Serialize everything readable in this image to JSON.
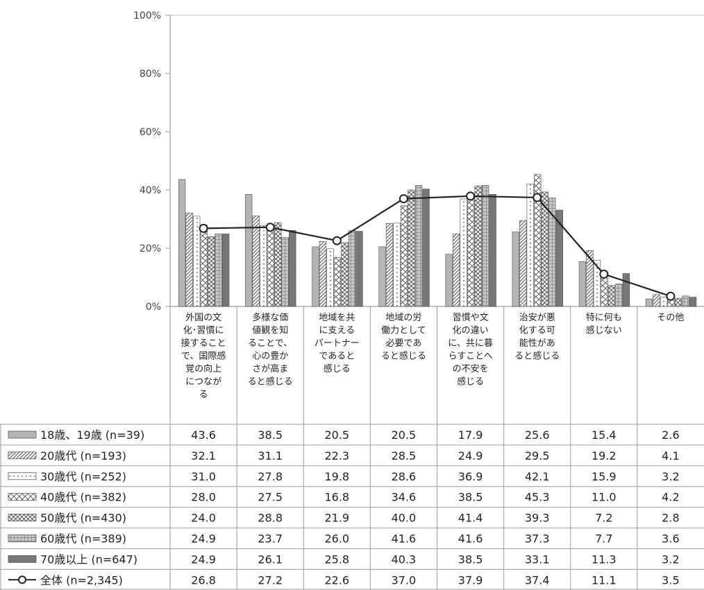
{
  "chart_data": {
    "type": "bar",
    "ylim": [
      0,
      100
    ],
    "yticks": [
      "0%",
      "20%",
      "40%",
      "60%",
      "80%",
      "100%"
    ],
    "categories": [
      [
        "外国の文",
        "化･習慣に",
        "接すること",
        "で、国際感",
        "覚の向上",
        "につなが",
        "る"
      ],
      [
        "多様な価",
        "値観を知",
        "ることで、",
        "心の豊か",
        "さが高ま",
        "ると感じる"
      ],
      [
        "地域を共",
        "に支える",
        "パートナー",
        "であると",
        "感じる"
      ],
      [
        "地域の労",
        "働力として",
        "必要であ",
        "ると感じる"
      ],
      [
        "習慣や文",
        "化の違い",
        "に、共に暮",
        "らすことへ",
        "の不安を",
        "感じる"
      ],
      [
        "治安が悪",
        "化する可",
        "能性があ",
        "ると感じる"
      ],
      [
        "特に何も",
        "感じない"
      ],
      [
        "その他"
      ]
    ],
    "series": [
      {
        "name": "18歳、19歳 (n=39)",
        "values": [
          43.6,
          38.5,
          20.5,
          20.5,
          17.9,
          25.6,
          15.4,
          2.6
        ],
        "display": [
          "43.6",
          "38.5",
          "20.5",
          "20.5",
          "17.9",
          "25.6",
          "15.4",
          "2.6"
        ],
        "pattern": "solid-light"
      },
      {
        "name": "20歳代 (n=193)",
        "values": [
          32.1,
          31.1,
          22.3,
          28.5,
          24.9,
          29.5,
          19.2,
          4.1
        ],
        "display": [
          "32.1",
          "31.1",
          "22.3",
          "28.5",
          "24.9",
          "29.5",
          "19.2",
          "4.1"
        ],
        "pattern": "diagonal"
      },
      {
        "name": "30歳代 (n=252)",
        "values": [
          31.0,
          27.8,
          19.8,
          28.6,
          36.9,
          42.1,
          15.9,
          3.2
        ],
        "display": [
          "31.0",
          "27.8",
          "19.8",
          "28.6",
          "36.9",
          "42.1",
          "15.9",
          "3.2"
        ],
        "pattern": "dots"
      },
      {
        "name": "40歳代 (n=382)",
        "values": [
          28.0,
          27.5,
          16.8,
          34.6,
          38.5,
          45.3,
          11.0,
          4.2
        ],
        "display": [
          "28.0",
          "27.5",
          "16.8",
          "34.6",
          "38.5",
          "45.3",
          "11.0",
          "4.2"
        ],
        "pattern": "zigzag"
      },
      {
        "name": "50歳代 (n=430)",
        "values": [
          24.0,
          28.8,
          21.9,
          40.0,
          41.4,
          39.3,
          7.2,
          2.8
        ],
        "display": [
          "24.0",
          "28.8",
          "21.9",
          "40.0",
          "41.4",
          "39.3",
          "7.2",
          "2.8"
        ],
        "pattern": "bricks"
      },
      {
        "name": "60歳代 (n=389)",
        "values": [
          24.9,
          23.7,
          26.0,
          41.6,
          41.6,
          37.3,
          7.7,
          3.6
        ],
        "display": [
          "24.9",
          "23.7",
          "26.0",
          "41.6",
          "41.6",
          "37.3",
          "7.7",
          "3.6"
        ],
        "pattern": "grid"
      },
      {
        "name": "70歳以上 (n=647)",
        "values": [
          24.9,
          26.1,
          25.8,
          40.3,
          38.5,
          33.1,
          11.3,
          3.2
        ],
        "display": [
          "24.9",
          "26.1",
          "25.8",
          "40.3",
          "38.5",
          "33.1",
          "11.3",
          "3.2"
        ],
        "pattern": "solid-dark"
      }
    ],
    "line_series": {
      "name": "全体 (n=2,345)",
      "values": [
        26.8,
        27.2,
        22.6,
        37.0,
        37.9,
        37.4,
        11.1,
        3.5
      ],
      "display": [
        "26.8",
        "27.2",
        "22.6",
        "37.0",
        "37.9",
        "37.4",
        "11.1",
        "3.5"
      ]
    },
    "colors": {
      "axis": "#9a9a9a",
      "bar_light": "#b5b5b5",
      "bar_dark": "#777777",
      "pattern_ink": "#5a5a5a",
      "line": "#222222"
    }
  }
}
